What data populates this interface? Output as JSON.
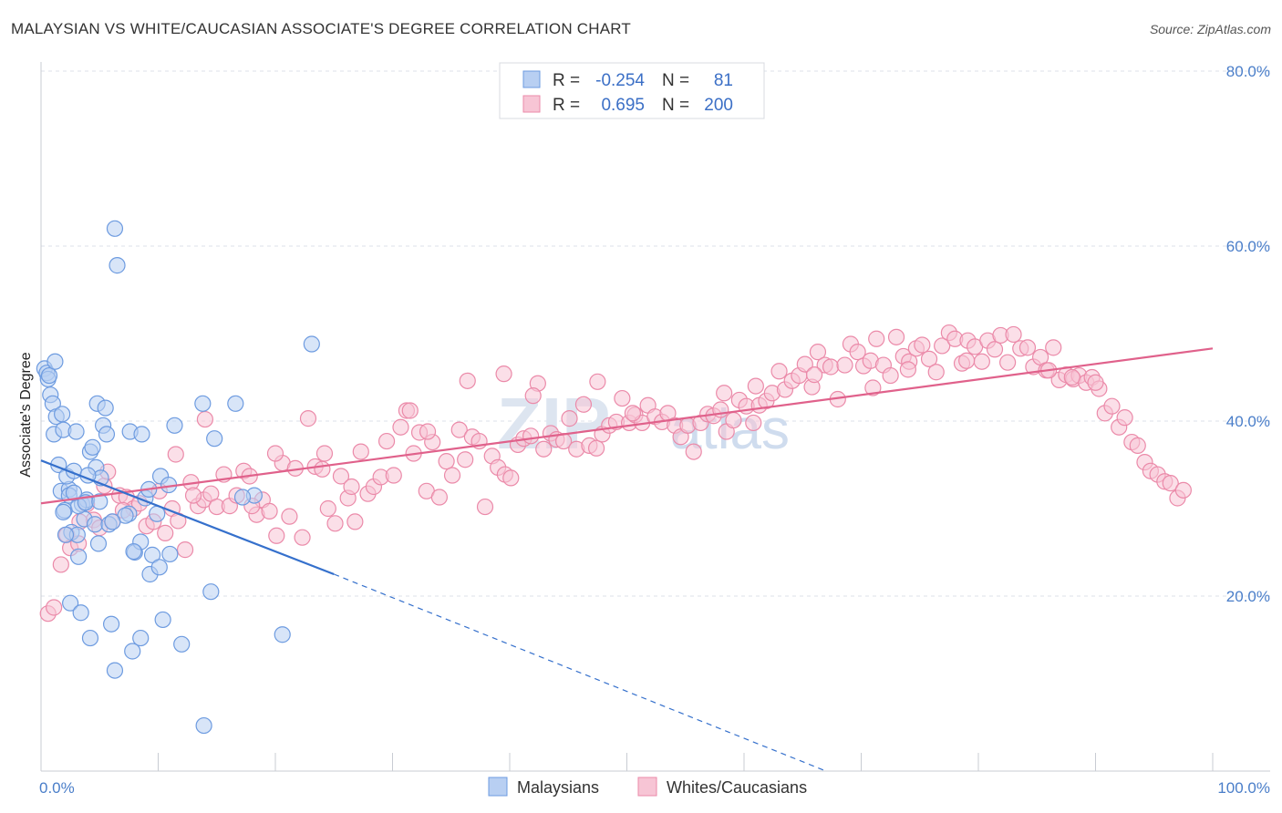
{
  "header": {
    "title": "MALAYSIAN VS WHITE/CAUCASIAN ASSOCIATE'S DEGREE CORRELATION CHART",
    "source": "Source: ZipAtlas.com"
  },
  "colors": {
    "blue": "#6d9be0",
    "blue_fill": "#b8cff2",
    "blue_line": "#3570cc",
    "pink": "#eb8aa9",
    "pink_fill": "#f7c5d5",
    "pink_line": "#e0618b",
    "grid": "#dde1e8",
    "axis_label": "#4a7ec9"
  },
  "legend": {
    "rows": [
      {
        "r_label": "R =",
        "r_value": "-0.254",
        "n_label": "N =",
        "n_value": "81"
      },
      {
        "r_label": "R =",
        "r_value": "0.695",
        "n_label": "N =",
        "n_value": "200"
      }
    ]
  },
  "bottom_legend": {
    "items": [
      "Malaysians",
      "Whites/Caucasians"
    ]
  },
  "watermark": {
    "zip": "ZIP",
    "atlas": "atlas"
  },
  "chart_data": {
    "type": "scatter",
    "title": "MALAYSIAN VS WHITE/CAUCASIAN ASSOCIATE'S DEGREE CORRELATION CHART",
    "xlabel": "",
    "ylabel": "Associate's Degree",
    "xlim": [
      0,
      100
    ],
    "ylim": [
      0,
      80
    ],
    "x_tick_labels": [
      "0.0%",
      "100.0%"
    ],
    "y_ticks": [
      20,
      40,
      60,
      80
    ],
    "y_tick_labels": [
      "20.0%",
      "40.0%",
      "60.0%",
      "80.0%"
    ],
    "grid": true,
    "legend_position": "top-center",
    "series": [
      {
        "name": "Malaysians",
        "r": -0.254,
        "n": 81,
        "trend": {
          "x": [
            0,
            25
          ],
          "y": [
            35.5,
            22.5
          ],
          "dashed_to": [
            67,
            0
          ]
        },
        "points": [
          [
            0.3,
            46
          ],
          [
            0.5,
            45.5
          ],
          [
            0.6,
            44.8
          ],
          [
            0.7,
            45.2
          ],
          [
            1.2,
            46.8
          ],
          [
            0.8,
            43
          ],
          [
            1.0,
            42
          ],
          [
            1.3,
            40.5
          ],
          [
            1.1,
            38.5
          ],
          [
            1.8,
            40.8
          ],
          [
            1.9,
            39
          ],
          [
            1.5,
            35
          ],
          [
            1.7,
            32
          ],
          [
            2.4,
            32.2
          ],
          [
            2.2,
            33.7
          ],
          [
            2.8,
            34.3
          ],
          [
            2.0,
            29.8
          ],
          [
            1.9,
            29.6
          ],
          [
            2.4,
            31.5
          ],
          [
            2.6,
            27.3
          ],
          [
            3.1,
            27
          ],
          [
            3.5,
            30.5
          ],
          [
            3.7,
            28.8
          ],
          [
            3.9,
            31
          ],
          [
            4.2,
            36.5
          ],
          [
            4.4,
            37
          ],
          [
            4.7,
            34.7
          ],
          [
            5.1,
            33.5
          ],
          [
            4.8,
            42
          ],
          [
            5.5,
            41.5
          ],
          [
            5.3,
            39.5
          ],
          [
            5.6,
            38.5
          ],
          [
            3.0,
            38.8
          ],
          [
            6.3,
            62
          ],
          [
            6.5,
            57.8
          ],
          [
            7.6,
            38.8
          ],
          [
            8.6,
            38.5
          ],
          [
            8.9,
            31.2
          ],
          [
            9.2,
            32.2
          ],
          [
            10.2,
            33.7
          ],
          [
            10.9,
            32.7
          ],
          [
            11.4,
            39.5
          ],
          [
            13.8,
            42
          ],
          [
            14.8,
            38
          ],
          [
            16.6,
            42
          ],
          [
            18.2,
            31.5
          ],
          [
            23.1,
            48.8
          ],
          [
            17.2,
            31.3
          ],
          [
            9.9,
            29.4
          ],
          [
            7.5,
            29.4
          ],
          [
            4.6,
            28.2
          ],
          [
            5.8,
            28.2
          ],
          [
            3.2,
            30.3
          ],
          [
            2.1,
            27
          ],
          [
            4.9,
            26
          ],
          [
            8.0,
            25
          ],
          [
            8.5,
            26.2
          ],
          [
            9.5,
            24.7
          ],
          [
            11.0,
            24.8
          ],
          [
            7.9,
            25.1
          ],
          [
            3.2,
            24.5
          ],
          [
            9.3,
            22.5
          ],
          [
            10.1,
            23.3
          ],
          [
            14.5,
            20.5
          ],
          [
            2.5,
            19.2
          ],
          [
            3.4,
            18.1
          ],
          [
            10.4,
            17.3
          ],
          [
            6.0,
            16.8
          ],
          [
            8.5,
            15.2
          ],
          [
            4.2,
            15.2
          ],
          [
            12.0,
            14.5
          ],
          [
            20.6,
            15.6
          ],
          [
            7.8,
            13.7
          ],
          [
            6.3,
            11.5
          ],
          [
            13.9,
            5.2
          ],
          [
            2.8,
            31.8
          ],
          [
            3.8,
            30.7
          ],
          [
            7.2,
            29.2
          ],
          [
            5.0,
            30.8
          ],
          [
            6.1,
            28.5
          ],
          [
            4.0,
            33.8
          ]
        ]
      },
      {
        "name": "Whites/Caucasians",
        "r": 0.695,
        "n": 200,
        "trend": {
          "x": [
            0,
            100
          ],
          "y": [
            30.6,
            48.3
          ]
        },
        "points": [
          [
            0.6,
            18
          ],
          [
            1.1,
            18.7
          ],
          [
            1.7,
            23.6
          ],
          [
            2.2,
            27
          ],
          [
            2.5,
            25.5
          ],
          [
            3.2,
            26
          ],
          [
            3.9,
            30.5
          ],
          [
            4.5,
            28.7
          ],
          [
            5.0,
            27.8
          ],
          [
            5.4,
            32.6
          ],
          [
            6.1,
            28.5
          ],
          [
            6.7,
            31.5
          ],
          [
            7.3,
            31.3
          ],
          [
            7.9,
            30
          ],
          [
            8.4,
            30.6
          ],
          [
            9.0,
            28
          ],
          [
            9.6,
            28.5
          ],
          [
            10.1,
            32
          ],
          [
            10.6,
            27.2
          ],
          [
            11.2,
            30
          ],
          [
            11.7,
            28.6
          ],
          [
            12.3,
            25.3
          ],
          [
            12.8,
            33
          ],
          [
            13.4,
            30.3
          ],
          [
            13.9,
            31
          ],
          [
            14.5,
            31.7
          ],
          [
            15.0,
            30.2
          ],
          [
            15.6,
            33.9
          ],
          [
            16.1,
            30.3
          ],
          [
            16.7,
            31.5
          ],
          [
            17.3,
            34.3
          ],
          [
            17.8,
            33.7
          ],
          [
            18.4,
            29.3
          ],
          [
            18.9,
            31
          ],
          [
            19.5,
            29.7
          ],
          [
            20.1,
            26.9
          ],
          [
            20.6,
            35.2
          ],
          [
            21.2,
            29.1
          ],
          [
            21.7,
            34.6
          ],
          [
            22.3,
            26.7
          ],
          [
            22.8,
            40.3
          ],
          [
            23.4,
            34.8
          ],
          [
            24.0,
            34.5
          ],
          [
            24.5,
            30
          ],
          [
            25.1,
            28.3
          ],
          [
            25.6,
            33.7
          ],
          [
            26.2,
            31.2
          ],
          [
            26.8,
            28.5
          ],
          [
            27.3,
            36.5
          ],
          [
            27.9,
            31.7
          ],
          [
            28.4,
            32.5
          ],
          [
            29.0,
            33.6
          ],
          [
            29.5,
            37.7
          ],
          [
            30.1,
            33.8
          ],
          [
            30.7,
            39.3
          ],
          [
            31.2,
            41.2
          ],
          [
            31.8,
            36.3
          ],
          [
            32.3,
            38.7
          ],
          [
            32.9,
            32
          ],
          [
            33.4,
            37.6
          ],
          [
            34.0,
            31.3
          ],
          [
            34.6,
            35.4
          ],
          [
            35.1,
            33.8
          ],
          [
            35.7,
            39
          ],
          [
            36.2,
            35.6
          ],
          [
            36.8,
            38.2
          ],
          [
            37.4,
            37.7
          ],
          [
            37.9,
            30.2
          ],
          [
            38.5,
            36
          ],
          [
            39.0,
            34.7
          ],
          [
            39.6,
            33.9
          ],
          [
            40.1,
            33.5
          ],
          [
            40.7,
            37.3
          ],
          [
            41.2,
            38
          ],
          [
            41.8,
            38.3
          ],
          [
            42.4,
            44.3
          ],
          [
            42.9,
            36.8
          ],
          [
            43.5,
            38.6
          ],
          [
            44.0,
            37.9
          ],
          [
            44.6,
            37.7
          ],
          [
            45.1,
            40.3
          ],
          [
            45.7,
            36.8
          ],
          [
            46.3,
            41.9
          ],
          [
            46.8,
            37.2
          ],
          [
            47.4,
            36.9
          ],
          [
            47.9,
            38.5
          ],
          [
            48.5,
            39.5
          ],
          [
            49.1,
            39.9
          ],
          [
            49.6,
            42.6
          ],
          [
            50.2,
            39.8
          ],
          [
            50.7,
            40.7
          ],
          [
            51.3,
            39.8
          ],
          [
            51.8,
            41.8
          ],
          [
            52.4,
            40.5
          ],
          [
            53.0,
            39.9
          ],
          [
            53.5,
            40.9
          ],
          [
            54.1,
            39.5
          ],
          [
            54.6,
            38.2
          ],
          [
            55.2,
            39.5
          ],
          [
            55.7,
            36.5
          ],
          [
            56.3,
            39.8
          ],
          [
            56.9,
            40.8
          ],
          [
            57.4,
            40.6
          ],
          [
            58.0,
            41.3
          ],
          [
            58.5,
            38.8
          ],
          [
            59.1,
            40.1
          ],
          [
            59.6,
            42.4
          ],
          [
            60.2,
            41.7
          ],
          [
            60.8,
            39.8
          ],
          [
            61.3,
            41.8
          ],
          [
            61.9,
            42.3
          ],
          [
            62.4,
            43.2
          ],
          [
            63.0,
            45.7
          ],
          [
            63.5,
            43.6
          ],
          [
            64.1,
            44.6
          ],
          [
            64.7,
            45.2
          ],
          [
            65.2,
            46.5
          ],
          [
            65.8,
            43.9
          ],
          [
            66.3,
            47.9
          ],
          [
            66.9,
            46.4
          ],
          [
            67.4,
            46.2
          ],
          [
            68.0,
            42.5
          ],
          [
            68.6,
            46.4
          ],
          [
            69.1,
            48.8
          ],
          [
            69.7,
            47.9
          ],
          [
            70.2,
            46.3
          ],
          [
            70.8,
            46.9
          ],
          [
            71.3,
            49.4
          ],
          [
            71.9,
            46.4
          ],
          [
            72.5,
            45.2
          ],
          [
            73.0,
            49.6
          ],
          [
            73.6,
            47.4
          ],
          [
            74.1,
            46.8
          ],
          [
            74.7,
            48.3
          ],
          [
            75.2,
            48.7
          ],
          [
            75.8,
            47.1
          ],
          [
            76.4,
            45.6
          ],
          [
            76.9,
            48.6
          ],
          [
            77.5,
            50.1
          ],
          [
            78.0,
            49.4
          ],
          [
            78.6,
            46.6
          ],
          [
            79.1,
            49.2
          ],
          [
            79.7,
            48.5
          ],
          [
            80.3,
            46.8
          ],
          [
            80.8,
            49.2
          ],
          [
            81.4,
            48.2
          ],
          [
            81.9,
            49.8
          ],
          [
            82.5,
            46.7
          ],
          [
            83.0,
            49.9
          ],
          [
            83.6,
            48.3
          ],
          [
            84.2,
            48.4
          ],
          [
            84.7,
            46.2
          ],
          [
            85.3,
            47.3
          ],
          [
            85.8,
            45.8
          ],
          [
            86.4,
            48.4
          ],
          [
            86.9,
            44.7
          ],
          [
            87.5,
            45.3
          ],
          [
            88.1,
            44.8
          ],
          [
            88.6,
            45.2
          ],
          [
            89.2,
            44.4
          ],
          [
            89.7,
            45
          ],
          [
            90.3,
            43.7
          ],
          [
            90.8,
            40.9
          ],
          [
            91.4,
            41.7
          ],
          [
            92.0,
            39.3
          ],
          [
            92.5,
            40.4
          ],
          [
            93.1,
            37.6
          ],
          [
            93.6,
            37.2
          ],
          [
            94.2,
            35.3
          ],
          [
            94.7,
            34.3
          ],
          [
            95.3,
            33.9
          ],
          [
            95.9,
            33.1
          ],
          [
            96.4,
            32.9
          ],
          [
            97.0,
            31.2
          ],
          [
            97.5,
            32.1
          ],
          [
            50.5,
            40.9
          ],
          [
            61.0,
            44
          ],
          [
            71.0,
            43.8
          ],
          [
            79.0,
            46.9
          ],
          [
            86.0,
            45.8
          ],
          [
            88.0,
            45
          ],
          [
            90.0,
            44.4
          ],
          [
            74.0,
            45.9
          ],
          [
            66.0,
            45.3
          ],
          [
            58.3,
            43.2
          ],
          [
            47.5,
            44.5
          ],
          [
            39.5,
            45.4
          ],
          [
            31.5,
            41.2
          ],
          [
            26.5,
            32.5
          ],
          [
            20.0,
            36.3
          ],
          [
            14.0,
            40.2
          ],
          [
            11.5,
            36.2
          ],
          [
            5.7,
            34.2
          ],
          [
            3.3,
            28.5
          ],
          [
            7.0,
            29.8
          ],
          [
            13.0,
            31.5
          ],
          [
            18.0,
            30.3
          ],
          [
            24.2,
            36.3
          ],
          [
            33.0,
            38.8
          ],
          [
            36.4,
            44.6
          ],
          [
            42.0,
            42.9
          ]
        ]
      }
    ]
  }
}
